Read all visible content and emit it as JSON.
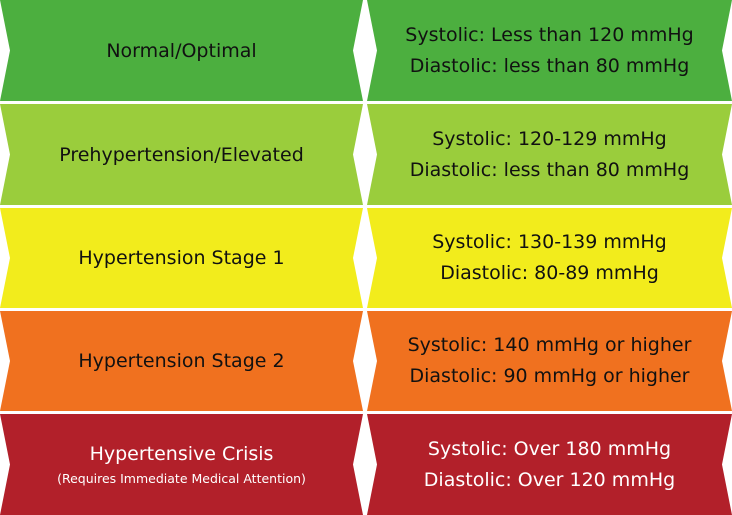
{
  "categories": [
    {
      "name": "Normal/Optimal",
      "note": "",
      "systolic": "Systolic: Less than 120 mmHg",
      "diastolic": "Diastolic: less than 80 mmHg",
      "color": "#4caf3f"
    },
    {
      "name": "Prehypertension/Elevated",
      "note": "",
      "systolic": "Systolic: 120-129 mmHg",
      "diastolic": "Diastolic: less than 80 mmHg",
      "color": "#9acd3c"
    },
    {
      "name": "Hypertension Stage 1",
      "note": "",
      "systolic": "Systolic: 130-139 mmHg",
      "diastolic": "Diastolic: 80-89 mmHg",
      "color": "#f2ec1c"
    },
    {
      "name": "Hypertension Stage 2",
      "note": "",
      "systolic": "Systolic: 140 mmHg or higher",
      "diastolic": "Diastolic: 90 mmHg or higher",
      "color": "#f0711f"
    },
    {
      "name": "Hypertensive Crisis",
      "note": "(Requires Immediate Medical Attention)",
      "systolic": "Systolic: Over 180 mmHg",
      "diastolic": "Diastolic: Over 120 mmHg",
      "color": "#b2202a"
    }
  ]
}
